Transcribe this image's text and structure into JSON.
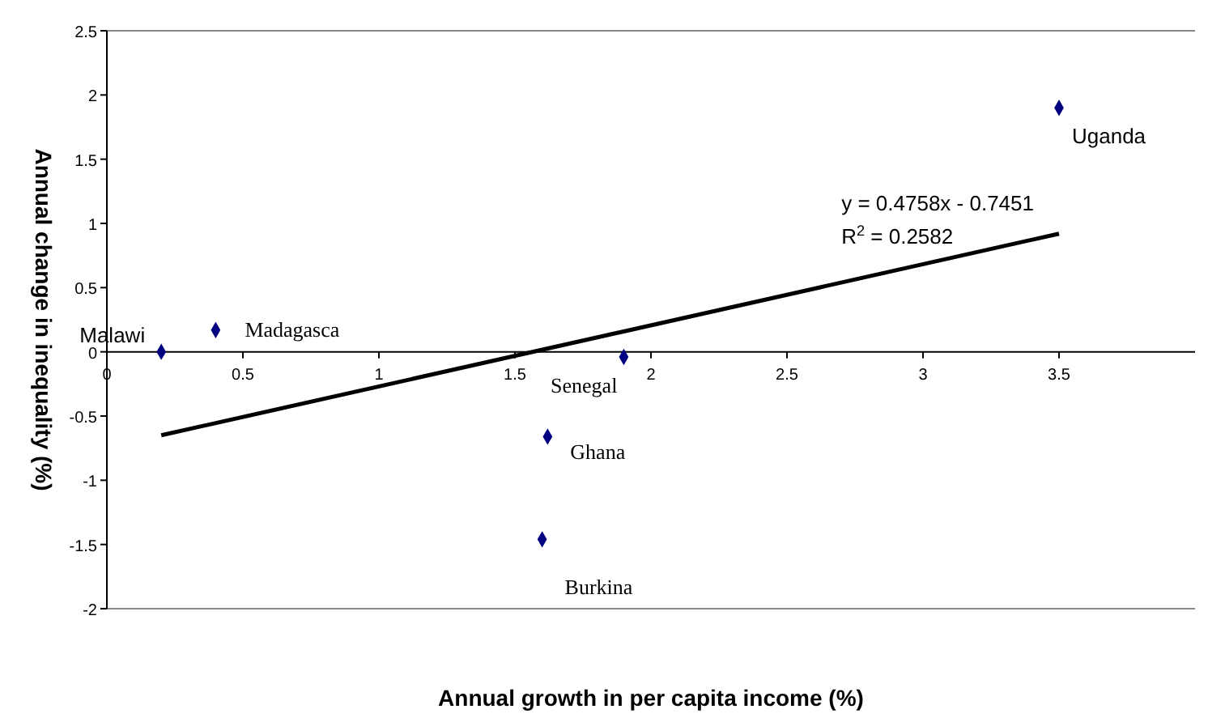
{
  "chart_data": {
    "type": "scatter",
    "xlabel": "Annual growth in per capita income (%)",
    "ylabel": "Annual change in inequality (%)",
    "xlim": [
      0,
      4
    ],
    "xticks": [
      0,
      0.5,
      1,
      1.5,
      2,
      2.5,
      3,
      3.5
    ],
    "ylim": [
      -2,
      2.5
    ],
    "yticks": [
      -2,
      -1.5,
      -1,
      -0.5,
      0,
      0.5,
      1,
      1.5,
      2,
      2.5
    ],
    "grid": false,
    "series": [
      {
        "marker": "diamond",
        "color": "#000080",
        "x": [
          0.2,
          0.4,
          1.62,
          1.6,
          1.9,
          3.5
        ],
        "values": [
          0,
          0.17,
          -0.66,
          -1.46,
          -0.04,
          1.9
        ],
        "value_labels": [
          "Malawi",
          "Madagasca",
          "Ghana",
          "Burkina",
          "Senegal",
          "Uganda"
        ]
      },
      {
        "type": "line",
        "color": "#000000",
        "x": [
          0.2,
          3.5
        ],
        "values": [
          -0.65,
          0.92
        ]
      }
    ],
    "annotations": [
      "y = 0.4758x - 0.7451",
      "R$^{2}$ = 0.2582"
    ]
  }
}
